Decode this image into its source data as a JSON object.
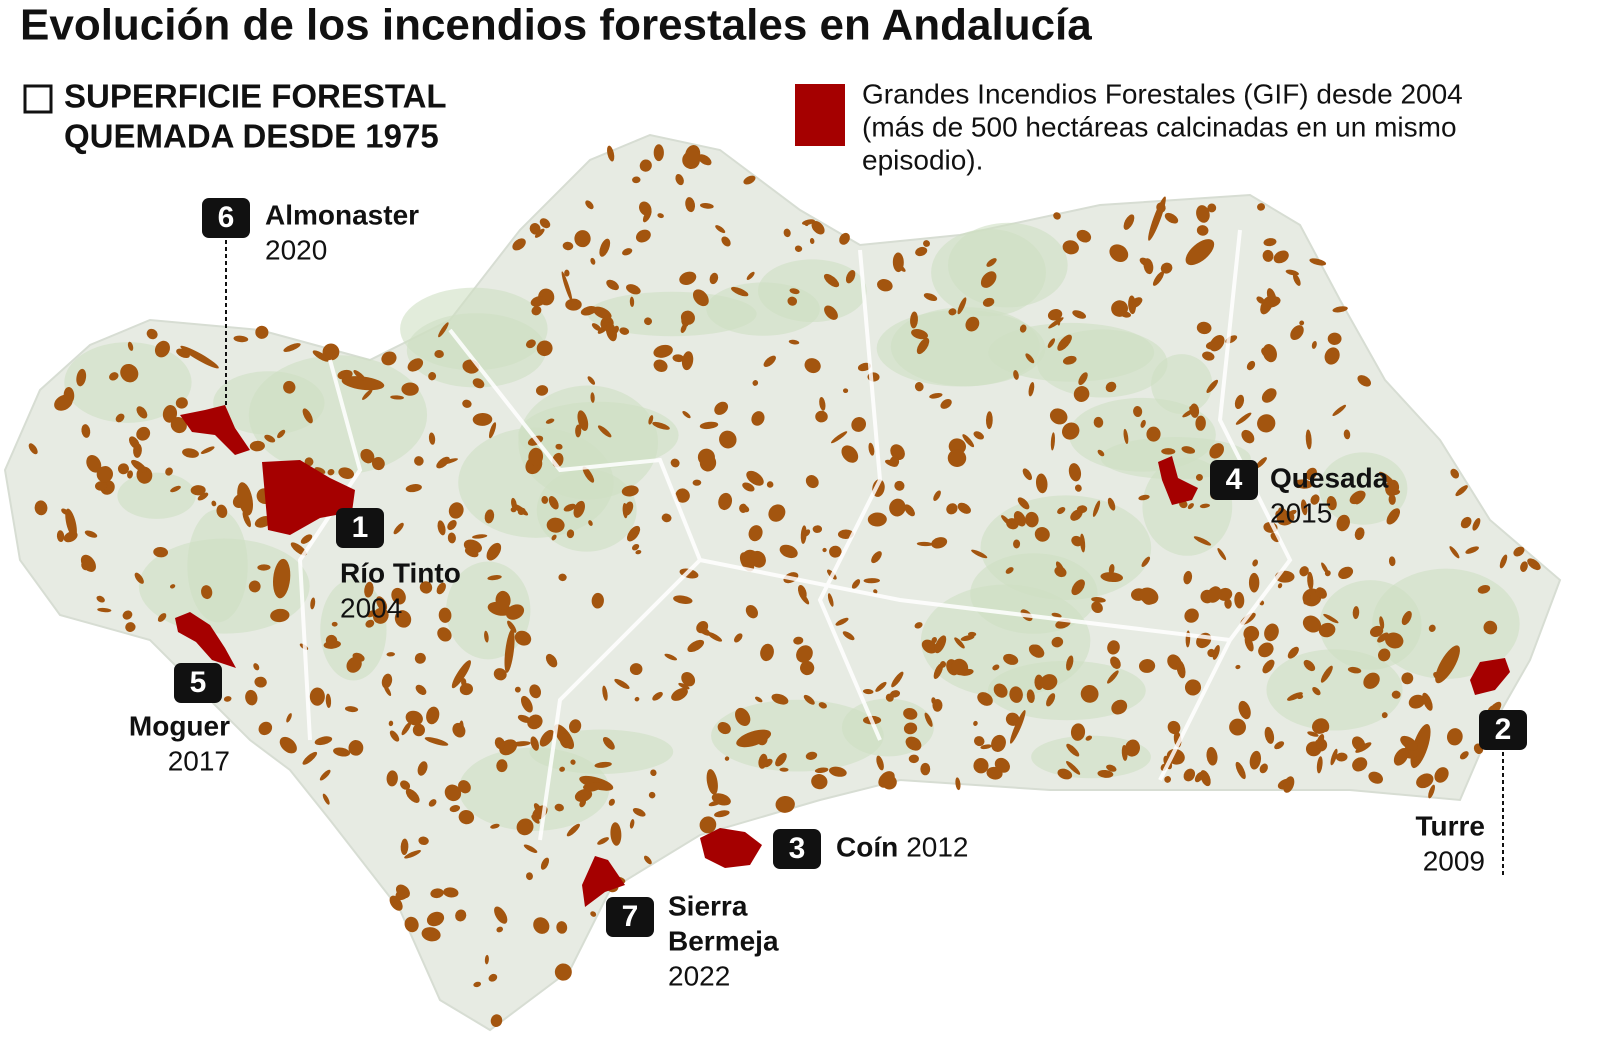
{
  "title": "Evolución de los incendios forestales en Andalucía",
  "legend": {
    "burned_area": [
      "SUPERFICIE FORESTAL",
      "QUEMADA DESDE 1975"
    ],
    "large_fires": [
      "Grandes Incendios Forestales (GIF) desde 2004",
      "(más de 500 hectáreas calcinadas en un mismo",
      "episodio)."
    ]
  },
  "fires": [
    {
      "number": 1,
      "name": [
        "Río Tinto"
      ],
      "year": "2004"
    },
    {
      "number": 2,
      "name": [
        "Turre"
      ],
      "year": "2009"
    },
    {
      "number": 3,
      "name": [
        "Coín"
      ],
      "year": "2012"
    },
    {
      "number": 4,
      "name": [
        "Quesada"
      ],
      "year": "2015"
    },
    {
      "number": 5,
      "name": [
        "Moguer"
      ],
      "year": "2017"
    },
    {
      "number": 6,
      "name": [
        "Almonaster"
      ],
      "year": "2020"
    },
    {
      "number": 7,
      "name": [
        "Sierra",
        "Bermeja"
      ],
      "year": "2022"
    }
  ]
}
